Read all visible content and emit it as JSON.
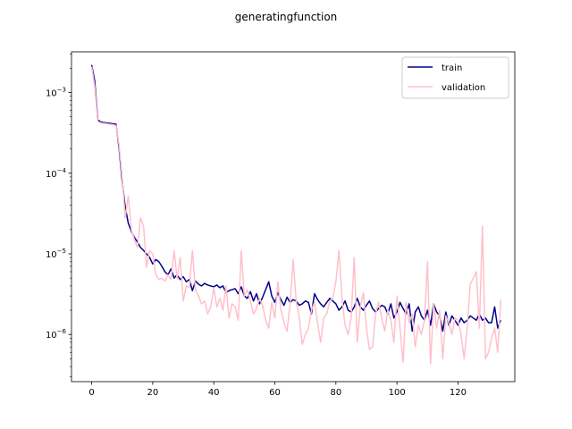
{
  "chart_data": {
    "type": "line",
    "title": "generatingfunction",
    "xlabel": "",
    "ylabel": "",
    "yscale": "log",
    "xlim": [
      -6.6,
      138.6
    ],
    "ylim": [
      2.6e-07,
      0.0032
    ],
    "xticks": [
      0,
      20,
      40,
      60,
      80,
      100,
      120
    ],
    "yticks": [
      1e-06,
      1e-05,
      0.0001,
      0.001
    ],
    "ytick_labels": [
      {
        "base": "10",
        "exp": "−6"
      },
      {
        "base": "10",
        "exp": "−5"
      },
      {
        "base": "10",
        "exp": "−4"
      },
      {
        "base": "10",
        "exp": "−3"
      }
    ],
    "grid": false,
    "legend_position": "upper right",
    "series": [
      {
        "name": "train",
        "color": "#00008b",
        "y": [
          0.0022,
          0.0014,
          0.00046,
          0.00043,
          0.000425,
          0.00042,
          0.000415,
          0.00041,
          0.000405,
          0.0002,
          8e-05,
          3.8e-05,
          2.4e-05,
          1.9e-05,
          1.6e-05,
          1.4e-05,
          1.2e-05,
          1.1e-05,
          1e-05,
          9e-06,
          7.5e-06,
          8.5e-06,
          8e-06,
          7e-06,
          6e-06,
          5.5e-06,
          6.5e-06,
          5e-06,
          5.5e-06,
          4.8e-06,
          5.2e-06,
          4.5e-06,
          4.8e-06,
          3.5e-06,
          4.6e-06,
          4.2e-06,
          4e-06,
          4.3e-06,
          4.1e-06,
          4e-06,
          3.9e-06,
          4.1e-06,
          3.8e-06,
          4e-06,
          3.3e-06,
          3.5e-06,
          3.6e-06,
          3.7e-06,
          3.2e-06,
          3.9e-06,
          3e-06,
          2.8e-06,
          3.4e-06,
          2.6e-06,
          3.2e-06,
          2.4e-06,
          2.9e-06,
          3.6e-06,
          4.5e-06,
          3e-06,
          2.5e-06,
          3.3e-06,
          2.7e-06,
          2.3e-06,
          2.9e-06,
          2.5e-06,
          2.7e-06,
          2.6e-06,
          2.3e-06,
          2.4e-06,
          2.6e-06,
          2.5e-06,
          1.8e-06,
          3.2e-06,
          2.7e-06,
          2.4e-06,
          2.2e-06,
          2.5e-06,
          2.8e-06,
          2.6e-06,
          2.4e-06,
          2e-06,
          2.2e-06,
          2.6e-06,
          2e-06,
          1.9e-06,
          2.2e-06,
          2.8e-06,
          2.2e-06,
          2e-06,
          2.3e-06,
          2.6e-06,
          2.1e-06,
          1.9e-06,
          2.1e-06,
          2.3e-06,
          2.2e-06,
          1.8e-06,
          2.4e-06,
          1.6e-06,
          1.9e-06,
          2.5e-06,
          2.1e-06,
          1.8e-06,
          2.4e-06,
          1.1e-06,
          1.9e-06,
          2.2e-06,
          1.7e-06,
          1.5e-06,
          2e-06,
          1.3e-06,
          2.4e-06,
          1.9e-06,
          1.7e-06,
          1.1e-06,
          1.9e-06,
          1.3e-06,
          1.7e-06,
          1.5e-06,
          1.3e-06,
          1.6e-06,
          1.4e-06,
          1.5e-06,
          1.7e-06,
          1.6e-06,
          1.5e-06,
          1.8e-06,
          1.5e-06,
          1.6e-06,
          1.4e-06,
          1.4e-06,
          2.2e-06,
          1.2e-06,
          1.5e-06
        ]
      },
      {
        "name": "validation",
        "color": "#ffc0cb",
        "y": [
          0.0021,
          0.0012,
          0.00044,
          0.00042,
          0.000415,
          0.00041,
          0.000405,
          0.0004,
          0.00039,
          0.00022,
          9e-05,
          2.8e-05,
          5.2e-05,
          2e-05,
          1.5e-05,
          1.2e-05,
          2.8e-05,
          2.2e-05,
          6.8e-06,
          1.1e-05,
          1e-05,
          5.5e-06,
          4.8e-06,
          5e-06,
          4.6e-06,
          5.5e-06,
          4.8e-06,
          1.1e-05,
          4.9e-06,
          9e-06,
          2.6e-06,
          4e-06,
          3.8e-06,
          1.1e-05,
          3.6e-06,
          3e-06,
          2.4e-06,
          2.6e-06,
          1.8e-06,
          2.2e-06,
          3.8e-06,
          2.2e-06,
          2.8e-06,
          2e-06,
          4e-06,
          1.6e-06,
          2.4e-06,
          2.2e-06,
          1.5e-06,
          1.1e-05,
          3e-06,
          3.6e-06,
          2.6e-06,
          1.8e-06,
          2.1e-06,
          2.8e-06,
          2.3e-06,
          1.5e-06,
          1.2e-06,
          2.5e-06,
          1.6e-06,
          4.5e-06,
          2e-06,
          1.4e-06,
          1.1e-06,
          2.4e-06,
          8.5e-06,
          2.6e-06,
          1.6e-06,
          7.5e-07,
          1e-06,
          1.2e-06,
          2e-06,
          2.5e-06,
          1.4e-06,
          8e-07,
          1.6e-06,
          1.8e-06,
          2.6e-06,
          2.8e-06,
          4.5e-06,
          1.1e-05,
          2.8e-06,
          1.3e-06,
          1e-06,
          1.6e-06,
          9e-06,
          8e-07,
          2.2e-06,
          3.3e-06,
          1.2e-06,
          6.5e-07,
          7e-07,
          1.8e-06,
          2.5e-06,
          1.6e-06,
          1.1e-06,
          2e-06,
          1.5e-06,
          8e-07,
          3e-06,
          1.2e-06,
          4.5e-07,
          2.5e-06,
          1.4e-06,
          1.8e-06,
          7e-07,
          1.3e-06,
          1e-06,
          1.5e-06,
          8e-06,
          4.3e-07,
          2.4e-06,
          1.2e-06,
          2e-06,
          5e-07,
          1.7e-06,
          1.4e-06,
          1e-06,
          1.6e-06,
          1.5e-06,
          1e-06,
          5e-07,
          1.2e-06,
          4.2e-06,
          5e-06,
          6e-06,
          1.2e-06,
          2.2e-05,
          5e-07,
          6e-07,
          9e-07,
          1.2e-06,
          6e-07,
          2.7e-06
        ]
      }
    ]
  }
}
